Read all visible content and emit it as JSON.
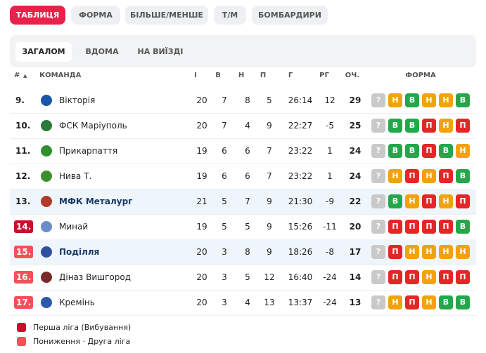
{
  "tabs": [
    "ТАБЛИЦЯ",
    "ФОРМА",
    "БІЛЬШЕ/МЕНШЕ",
    "Т/М",
    "БОМБАРДИРИ"
  ],
  "subtabs": [
    "ЗАГАЛОМ",
    "ВДОМА",
    "НА ВИЇЗДІ"
  ],
  "header": [
    "#",
    "КОМАНДА",
    "І",
    "В",
    "Н",
    "П",
    "Г",
    "РГ",
    "ОЧ.",
    "ФОРМА"
  ],
  "form_colors": {
    "?": "#c9c9c9",
    "В": "#22a84a",
    "Н": "#f2a20c",
    "П": "#e32626"
  },
  "rows": [
    {
      "pos": "9.",
      "team": "Вікторія",
      "p": 20,
      "w": 7,
      "d": 8,
      "l": 5,
      "goals": "26:14",
      "gd": 12,
      "pts": 29,
      "form": [
        "?",
        "Н",
        "В",
        "Н",
        "Н",
        "В"
      ]
    },
    {
      "pos": "10.",
      "team": "ФСК Маріуполь",
      "p": 20,
      "w": 7,
      "d": 4,
      "l": 9,
      "goals": "22:27",
      "gd": -5,
      "pts": 25,
      "form": [
        "?",
        "В",
        "В",
        "П",
        "Н",
        "П"
      ]
    },
    {
      "pos": "11.",
      "team": "Прикарпаття",
      "p": 19,
      "w": 6,
      "d": 6,
      "l": 7,
      "goals": "23:22",
      "gd": 1,
      "pts": 24,
      "form": [
        "?",
        "В",
        "В",
        "П",
        "В",
        "Н"
      ]
    },
    {
      "pos": "12.",
      "team": "Нива Т.",
      "p": 19,
      "w": 6,
      "d": 6,
      "l": 7,
      "goals": "23:22",
      "gd": 1,
      "pts": 24,
      "form": [
        "?",
        "Н",
        "П",
        "Н",
        "П",
        "В"
      ]
    },
    {
      "pos": "13.",
      "team": "МФК Металург",
      "p": 21,
      "w": 5,
      "d": 7,
      "l": 9,
      "goals": "21:30",
      "gd": -9,
      "pts": 22,
      "form": [
        "?",
        "В",
        "Н",
        "П",
        "Н",
        "П"
      ],
      "highlight": true
    },
    {
      "pos": "14.",
      "team": "Минай",
      "p": 19,
      "w": 5,
      "d": 5,
      "l": 9,
      "goals": "15:26",
      "gd": -11,
      "pts": 20,
      "form": [
        "?",
        "П",
        "П",
        "П",
        "П",
        "В"
      ],
      "badge": "#c8102e"
    },
    {
      "pos": "15.",
      "team": "Поділля",
      "p": 20,
      "w": 3,
      "d": 8,
      "l": 9,
      "goals": "18:26",
      "gd": -8,
      "pts": 17,
      "form": [
        "?",
        "П",
        "Н",
        "Н",
        "Н",
        "Н"
      ],
      "badge": "#f4505a",
      "highlight": true
    },
    {
      "pos": "16.",
      "team": "Діназ Вишгород",
      "p": 20,
      "w": 3,
      "d": 5,
      "l": 12,
      "goals": "16:40",
      "gd": -24,
      "pts": 14,
      "form": [
        "?",
        "П",
        "П",
        "Н",
        "П",
        "П"
      ],
      "badge": "#f4505a"
    },
    {
      "pos": "17.",
      "team": "Кремінь",
      "p": 20,
      "w": 3,
      "d": 4,
      "l": 13,
      "goals": "13:37",
      "gd": -24,
      "pts": 13,
      "form": [
        "?",
        "Н",
        "П",
        "Н",
        "В",
        "В"
      ],
      "badge": "#f4505a"
    }
  ],
  "legend": [
    {
      "label": "Перша ліга (Вибування)",
      "color": "#c8102e"
    },
    {
      "label": "Пониження · Друга ліга",
      "color": "#f4505a"
    }
  ]
}
